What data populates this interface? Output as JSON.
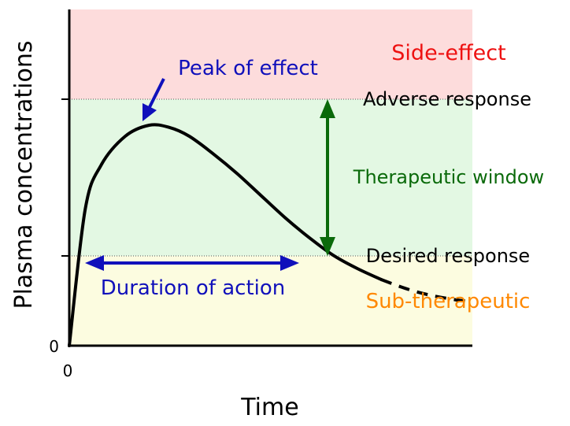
{
  "chart_data": {
    "type": "line",
    "title": "",
    "xlabel": "Time",
    "ylabel": "Plasma concentrations",
    "x_tick_labels": [
      "0"
    ],
    "y_tick_labels": [
      "0"
    ],
    "zones": [
      {
        "name": "Side-effect",
        "color": "#fddcdc"
      },
      {
        "name": "Therapeutic window",
        "color": "#e3f8e3"
      },
      {
        "name": "Sub-therapeutic",
        "color": "#fcfce0"
      }
    ],
    "thresholds": [
      {
        "label": "Adverse response"
      },
      {
        "label": "Desired response"
      }
    ],
    "series": [
      {
        "line": "solid then dashed",
        "x": [
          0,
          4,
          8,
          14,
          20,
          25,
          30,
          36,
          42,
          48,
          54,
          60,
          66,
          72,
          78,
          84,
          90,
          96,
          100
        ],
        "y": [
          0,
          62,
          82,
          95,
          100,
          99,
          95,
          87,
          78,
          68,
          58,
          49,
          41,
          35,
          30,
          26,
          23,
          21,
          20
        ]
      }
    ]
  },
  "annotations": {
    "side_effect": "Side-effect",
    "adverse_response": "Adverse response",
    "therapeutic_window": "Therapeutic window",
    "desired_response": "Desired response",
    "sub_therapeutic": "Sub-therapeutic",
    "peak_of_effect": "Peak of effect",
    "duration_of_action": "Duration of action"
  },
  "colors": {
    "side_effect_text": "#ee1111",
    "therapeutic_text": "#0a6a0a",
    "sub_therapeutic_text": "#ff8800",
    "annotation_blue": "#1010bb",
    "window_arrow": "#0a6a0a",
    "curve": "#000000"
  }
}
